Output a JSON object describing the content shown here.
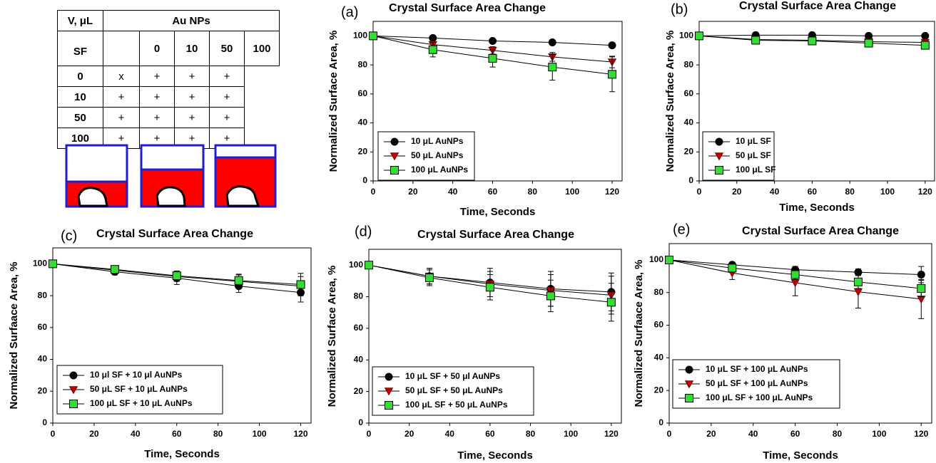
{
  "table": {
    "corner": "V, μL",
    "group": "Au NPs",
    "row_group": "SF",
    "col_headers": [
      "0",
      "10",
      "50",
      "100"
    ],
    "rows": [
      {
        "label": "0",
        "cells": [
          "x",
          "+",
          "+",
          "+"
        ]
      },
      {
        "label": "10",
        "cells": [
          "+",
          "+",
          "+",
          "+"
        ]
      },
      {
        "label": "50",
        "cells": [
          "+",
          "+",
          "+",
          "+"
        ]
      },
      {
        "label": "100",
        "cells": [
          "+",
          "+",
          "+",
          "+"
        ]
      }
    ]
  },
  "chart_data": [
    {
      "type": "line",
      "panel_label": "(a)",
      "title": "Crystal Surface Area Change",
      "xlabel": "Time, Seconds",
      "ylabel": "Normalized Surface Area, %",
      "x": [
        0,
        30,
        60,
        90,
        120
      ],
      "xlim": [
        0,
        125
      ],
      "ylim": [
        0,
        110
      ],
      "xticks": [
        0,
        20,
        40,
        60,
        80,
        100,
        120
      ],
      "yticks": [
        0,
        20,
        40,
        60,
        80,
        100
      ],
      "legend": "lower left",
      "series": [
        {
          "name": "10 μL AuNPs",
          "color": "#000000",
          "marker": "circle",
          "values": [
            100,
            98.5,
            96.5,
            95.5,
            93.5
          ],
          "errors": [
            0,
            1.2,
            1.5,
            1.5,
            1.5
          ]
        },
        {
          "name": "50 μL AuNPs",
          "color": "#c00000",
          "marker": "triangle-down",
          "values": [
            100,
            94,
            90,
            85.5,
            82
          ],
          "errors": [
            0,
            2,
            2.5,
            3,
            4
          ]
        },
        {
          "name": "100 μL AuNPs",
          "color": "#33dd33",
          "marker": "square",
          "values": [
            100,
            90.5,
            84.5,
            78.5,
            73.5
          ],
          "errors": [
            0,
            5,
            6,
            9,
            12
          ]
        }
      ]
    },
    {
      "type": "line",
      "panel_label": "(b)",
      "title": "Crystal Surface Area Change",
      "xlabel": "Time, Seconds",
      "ylabel": "Normalized Surface Area, %",
      "x": [
        0,
        30,
        60,
        90,
        120
      ],
      "xlim": [
        0,
        125
      ],
      "ylim": [
        0,
        110
      ],
      "xticks": [
        0,
        20,
        40,
        60,
        80,
        100,
        120
      ],
      "yticks": [
        0,
        20,
        40,
        60,
        80,
        100
      ],
      "legend": "lower left",
      "series": [
        {
          "name": "10 μL SF",
          "color": "#000000",
          "marker": "circle",
          "values": [
            100,
            100.5,
            100.5,
            100,
            100
          ],
          "errors": [
            0,
            1,
            1,
            1,
            1
          ]
        },
        {
          "name": "50 μL SF",
          "color": "#c00000",
          "marker": "triangle-down",
          "values": [
            100,
            97.5,
            97,
            96,
            95.5
          ],
          "errors": [
            0,
            1,
            1.5,
            1.5,
            1.5
          ]
        },
        {
          "name": "100 μL SF",
          "color": "#33dd33",
          "marker": "square",
          "values": [
            100,
            97,
            96.5,
            95,
            93.5
          ],
          "errors": [
            0,
            1,
            1.5,
            1.5,
            2
          ]
        }
      ]
    },
    {
      "type": "line",
      "panel_label": "(c)",
      "title": "Crystal Surface Area Change",
      "xlabel": "Time, Seconds",
      "ylabel": "Normalized Surfaace Area, %",
      "x": [
        0,
        30,
        60,
        90,
        120
      ],
      "xlim": [
        0,
        125
      ],
      "ylim": [
        0,
        110
      ],
      "xticks": [
        0,
        20,
        40,
        60,
        80,
        100,
        120
      ],
      "yticks": [
        0,
        20,
        40,
        60,
        80,
        100
      ],
      "legend": "lower left",
      "series": [
        {
          "name": "10 μl SF + 10 μl AuNPs",
          "color": "#000000",
          "marker": "circle",
          "values": [
            100,
            95,
            91,
            86,
            82
          ],
          "errors": [
            0,
            2,
            4,
            4,
            6
          ]
        },
        {
          "name": "50 μL SF + 10 μL AuNPs",
          "color": "#c00000",
          "marker": "triangle-down",
          "values": [
            100,
            96,
            92,
            89,
            86
          ],
          "errors": [
            0,
            2,
            3,
            4,
            6
          ]
        },
        {
          "name": "100 μL SF + 10 μL AuNPs",
          "color": "#33dd33",
          "marker": "square",
          "values": [
            100,
            96.5,
            92.5,
            89.5,
            87
          ],
          "errors": [
            0,
            2,
            3,
            4,
            7
          ]
        }
      ]
    },
    {
      "type": "line",
      "panel_label": "(d)",
      "title": "Crystal Surface Area Change",
      "xlabel": "Time, Seconds",
      "ylabel": "Normalized Surface Area, %",
      "x": [
        0,
        30,
        60,
        90,
        120
      ],
      "xlim": [
        0,
        125
      ],
      "ylim": [
        0,
        110
      ],
      "xticks": [
        0,
        20,
        40,
        60,
        80,
        100,
        120
      ],
      "yticks": [
        0,
        20,
        40,
        60,
        80,
        100
      ],
      "legend": "lower left",
      "series": [
        {
          "name": "10 μL SF + 50 μl AuNPs",
          "color": "#000000",
          "marker": "circle",
          "values": [
            100,
            93,
            89,
            85,
            83
          ],
          "errors": [
            0,
            5,
            9,
            11,
            12
          ]
        },
        {
          "name": "50 μL SF + 50 μL AuNPs",
          "color": "#c00000",
          "marker": "triangle-down",
          "values": [
            100,
            93,
            88,
            84,
            81
          ],
          "errors": [
            0,
            5,
            8,
            10,
            12
          ]
        },
        {
          "name": "100 μL SF + 50 μL AuNPs",
          "color": "#33dd33",
          "marker": "square",
          "values": [
            100,
            92,
            86,
            80.5,
            76.5
          ],
          "errors": [
            0,
            5,
            8,
            10,
            12
          ]
        }
      ]
    },
    {
      "type": "line",
      "panel_label": "(e)",
      "title": "Crystal Surface Area Change",
      "xlabel": "Time, Seconds",
      "ylabel": "Normalized Surfaace Area, %",
      "x": [
        0,
        30,
        60,
        90,
        120
      ],
      "xlim": [
        0,
        125
      ],
      "ylim": [
        0,
        110
      ],
      "xticks": [
        0,
        20,
        40,
        60,
        80,
        100,
        120
      ],
      "yticks": [
        0,
        20,
        40,
        60,
        80,
        100
      ],
      "legend": "lower left",
      "series": [
        {
          "name": "10 μL SF + 100 μL AuNPs",
          "color": "#000000",
          "marker": "circle",
          "values": [
            100,
            97,
            94,
            92.5,
            91
          ],
          "errors": [
            0,
            1,
            2,
            2,
            5
          ]
        },
        {
          "name": "50 μL SF + 100 μL AuNPs",
          "color": "#c00000",
          "marker": "triangle-down",
          "values": [
            100,
            92,
            86,
            80.5,
            76
          ],
          "errors": [
            0,
            4,
            8,
            10,
            12
          ]
        },
        {
          "name": "100 μL SF + 100 μL AuNPs",
          "color": "#33dd33",
          "marker": "square",
          "values": [
            100,
            95,
            91,
            86.5,
            82.5
          ],
          "errors": [
            0,
            2,
            3,
            4,
            5
          ]
        }
      ]
    }
  ]
}
